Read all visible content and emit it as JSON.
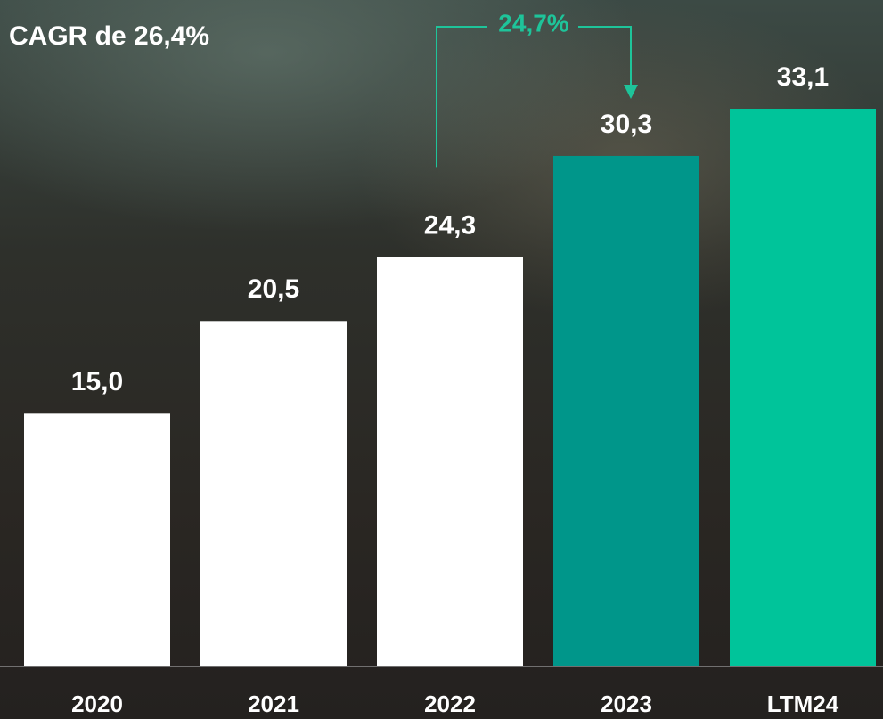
{
  "chart_data": {
    "type": "bar",
    "title": "CAGR de 26,4%",
    "categories": [
      "2020",
      "2021",
      "2022",
      "2023",
      "LTM24"
    ],
    "values": [
      15.0,
      20.5,
      24.3,
      30.3,
      33.1
    ],
    "value_labels": [
      "15,0",
      "20,5",
      "24,3",
      "30,3",
      "33,1"
    ],
    "colors": [
      "#ffffff",
      "#ffffff",
      "#ffffff",
      "#00968a",
      "#00c49a"
    ],
    "annotation": "24,7%",
    "annotation_color": "#1ec49a"
  }
}
